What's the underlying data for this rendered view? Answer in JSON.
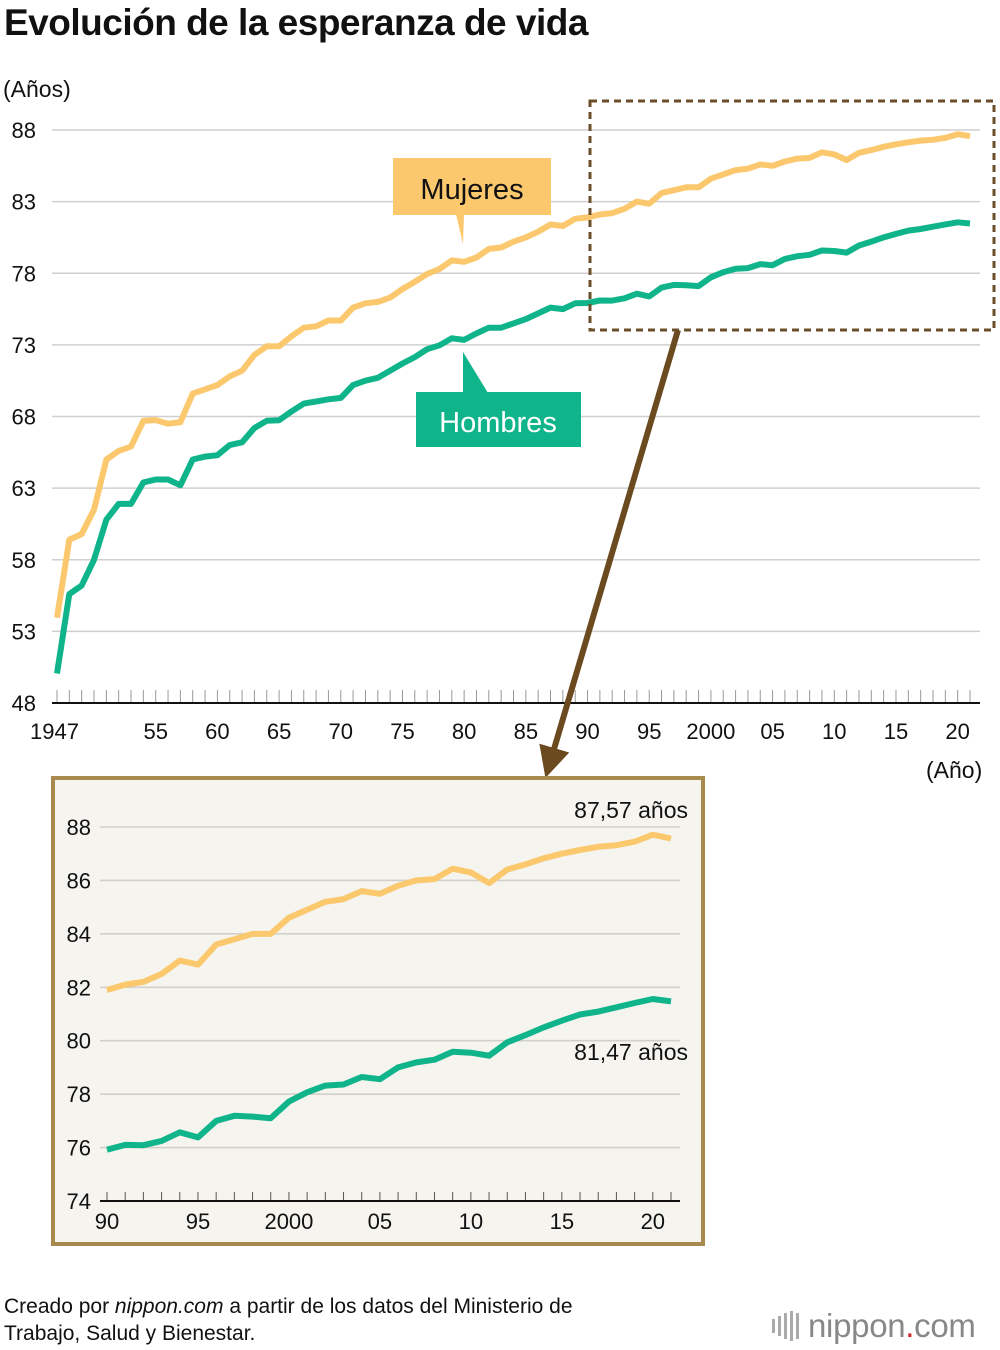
{
  "title": "Evolución de la esperanza de vida",
  "footer": {
    "prefix": "Creado por ",
    "source_site": "nippon.com",
    "suffix": " a partir de los datos del Ministerio de",
    "line2": "Trabajo, Salud y Bienestar."
  },
  "logo": {
    "name": "nippon",
    "dot": ".",
    "tld": "com"
  },
  "colors": {
    "mujeres": "#FBC86E",
    "hombres": "#10B48A",
    "frame": "#A98A4E",
    "dashed": "#6B4F2A",
    "arrow": "#6B4A1F",
    "inset_bg": "#F5F4EF"
  },
  "chart_data": [
    {
      "type": "line",
      "title": "Evolución de la esperanza de vida",
      "ylabel": "(Años)",
      "xlabel": "(Año)",
      "ylim": [
        48,
        88
      ],
      "yticks": [
        "48",
        "53",
        "58",
        "63",
        "68",
        "73",
        "78",
        "83",
        "88"
      ],
      "xticks": [
        {
          "year": 1947,
          "label": "1947"
        },
        {
          "year": 1955,
          "label": "55"
        },
        {
          "year": 1960,
          "label": "60"
        },
        {
          "year": 1965,
          "label": "65"
        },
        {
          "year": 1970,
          "label": "70"
        },
        {
          "year": 1975,
          "label": "75"
        },
        {
          "year": 1980,
          "label": "80"
        },
        {
          "year": 1985,
          "label": "85"
        },
        {
          "year": 1990,
          "label": "90"
        },
        {
          "year": 1995,
          "label": "95"
        },
        {
          "year": 2000,
          "label": "2000"
        },
        {
          "year": 2005,
          "label": "05"
        },
        {
          "year": 2010,
          "label": "10"
        },
        {
          "year": 2015,
          "label": "15"
        },
        {
          "year": 2020,
          "label": "20"
        }
      ],
      "x": [
        1947,
        1948,
        1949,
        1950,
        1951,
        1952,
        1953,
        1954,
        1955,
        1956,
        1957,
        1958,
        1959,
        1960,
        1961,
        1962,
        1963,
        1964,
        1965,
        1966,
        1967,
        1968,
        1969,
        1970,
        1971,
        1972,
        1973,
        1974,
        1975,
        1976,
        1977,
        1978,
        1979,
        1980,
        1981,
        1982,
        1983,
        1984,
        1985,
        1986,
        1987,
        1988,
        1989,
        1990,
        1991,
        1992,
        1993,
        1994,
        1995,
        1996,
        1997,
        1998,
        1999,
        2000,
        2001,
        2002,
        2003,
        2004,
        2005,
        2006,
        2007,
        2008,
        2009,
        2010,
        2011,
        2012,
        2013,
        2014,
        2015,
        2016,
        2017,
        2018,
        2019,
        2020,
        2021
      ],
      "series": [
        {
          "name": "Mujeres",
          "label": "Mujeres",
          "color": "#FBC86E",
          "values": [
            53.96,
            59.4,
            59.8,
            61.5,
            65.0,
            65.6,
            65.9,
            67.7,
            67.75,
            67.5,
            67.6,
            69.6,
            69.9,
            70.2,
            70.8,
            71.2,
            72.3,
            72.9,
            72.9,
            73.6,
            74.2,
            74.3,
            74.7,
            74.7,
            75.6,
            75.9,
            76.0,
            76.3,
            76.9,
            77.4,
            77.95,
            78.3,
            78.9,
            78.8,
            79.1,
            79.7,
            79.8,
            80.2,
            80.5,
            80.9,
            81.4,
            81.3,
            81.8,
            81.9,
            82.1,
            82.2,
            82.5,
            83.0,
            82.85,
            83.6,
            83.8,
            84.0,
            84.0,
            84.6,
            84.9,
            85.2,
            85.3,
            85.6,
            85.5,
            85.8,
            86.0,
            86.05,
            86.44,
            86.3,
            85.9,
            86.41,
            86.6,
            86.83,
            87.0,
            87.14,
            87.26,
            87.32,
            87.45,
            87.71,
            87.57
          ]
        },
        {
          "name": "Hombres",
          "label": "Hombres",
          "color": "#10B48A",
          "values": [
            50.06,
            55.6,
            56.2,
            58.0,
            60.8,
            61.9,
            61.9,
            63.4,
            63.6,
            63.6,
            63.2,
            65.0,
            65.2,
            65.3,
            66.0,
            66.2,
            67.2,
            67.7,
            67.74,
            68.35,
            68.9,
            69.05,
            69.2,
            69.3,
            70.2,
            70.5,
            70.7,
            71.2,
            71.7,
            72.15,
            72.7,
            72.97,
            73.46,
            73.35,
            73.8,
            74.2,
            74.2,
            74.5,
            74.8,
            75.2,
            75.6,
            75.5,
            75.9,
            75.92,
            76.1,
            76.09,
            76.25,
            76.57,
            76.38,
            77.0,
            77.19,
            77.16,
            77.1,
            77.72,
            78.07,
            78.32,
            78.36,
            78.64,
            78.56,
            79.0,
            79.19,
            79.29,
            79.59,
            79.55,
            79.44,
            79.94,
            80.21,
            80.5,
            80.75,
            80.98,
            81.09,
            81.25,
            81.41,
            81.56,
            81.47
          ]
        }
      ]
    },
    {
      "type": "line",
      "title": "",
      "ylim": [
        74,
        88
      ],
      "yticks": [
        "74",
        "76",
        "78",
        "80",
        "82",
        "84",
        "86",
        "88"
      ],
      "xticks": [
        {
          "year": 1990,
          "label": "90"
        },
        {
          "year": 1995,
          "label": "95"
        },
        {
          "year": 2000,
          "label": "2000"
        },
        {
          "year": 2005,
          "label": "05"
        },
        {
          "year": 2010,
          "label": "10"
        },
        {
          "year": 2015,
          "label": "15"
        },
        {
          "year": 2020,
          "label": "20"
        }
      ],
      "x_from": 1990,
      "annotations": [
        {
          "series": "Mujeres",
          "text": "87,57 años"
        },
        {
          "series": "Hombres",
          "text": "81,47 años"
        }
      ]
    }
  ]
}
